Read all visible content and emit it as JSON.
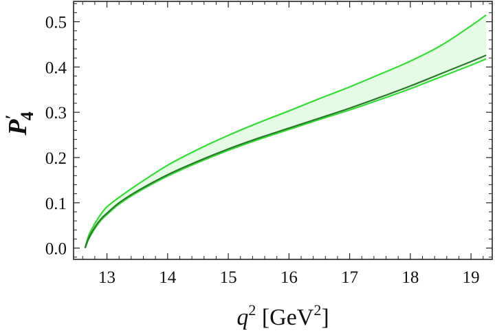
{
  "chart_data": {
    "type": "line",
    "title": "",
    "xlabel": {
      "base": "q",
      "sup": "2",
      "unit_open": " [GeV",
      "unit_sup": "2",
      "unit_close": "]"
    },
    "ylabel": {
      "base": "P",
      "prime": "′",
      "sub": "4"
    },
    "xlim": [
      12.45,
      19.35
    ],
    "ylim": [
      -0.025,
      0.545
    ],
    "grid": false,
    "legend": "none",
    "x_ticks": [
      13,
      14,
      15,
      16,
      17,
      18,
      19
    ],
    "x_tick_labels": [
      "13",
      "14",
      "15",
      "16",
      "17",
      "18",
      "19"
    ],
    "y_ticks": [
      0.0,
      0.1,
      0.2,
      0.3,
      0.4,
      0.5
    ],
    "y_tick_labels": [
      "0.0",
      "0.1",
      "0.2",
      "0.3",
      "0.4",
      "0.5"
    ],
    "colors": {
      "central": "#2a7a2a",
      "bound": "#33dd33",
      "band_fill": "#e6fbe6",
      "frame": "#222222"
    },
    "x": [
      12.64,
      12.7,
      12.8,
      12.9,
      13.0,
      13.2,
      13.5,
      14.0,
      14.5,
      15.0,
      15.5,
      16.0,
      16.5,
      17.0,
      17.5,
      18.0,
      18.5,
      19.0,
      19.25
    ],
    "series": [
      {
        "role": "upper",
        "values": [
          0.0,
          0.028,
          0.054,
          0.075,
          0.091,
          0.112,
          0.14,
          0.183,
          0.218,
          0.249,
          0.277,
          0.303,
          0.33,
          0.356,
          0.384,
          0.413,
          0.447,
          0.491,
          0.515
        ]
      },
      {
        "role": "central",
        "values": [
          0.0,
          0.022,
          0.046,
          0.064,
          0.077,
          0.1,
          0.126,
          0.162,
          0.192,
          0.219,
          0.243,
          0.265,
          0.287,
          0.309,
          0.333,
          0.358,
          0.385,
          0.412,
          0.426
        ]
      },
      {
        "role": "lower",
        "values": [
          0.0,
          0.02,
          0.043,
          0.061,
          0.074,
          0.097,
          0.123,
          0.159,
          0.189,
          0.216,
          0.24,
          0.262,
          0.284,
          0.305,
          0.328,
          0.352,
          0.378,
          0.404,
          0.418
        ]
      }
    ]
  }
}
